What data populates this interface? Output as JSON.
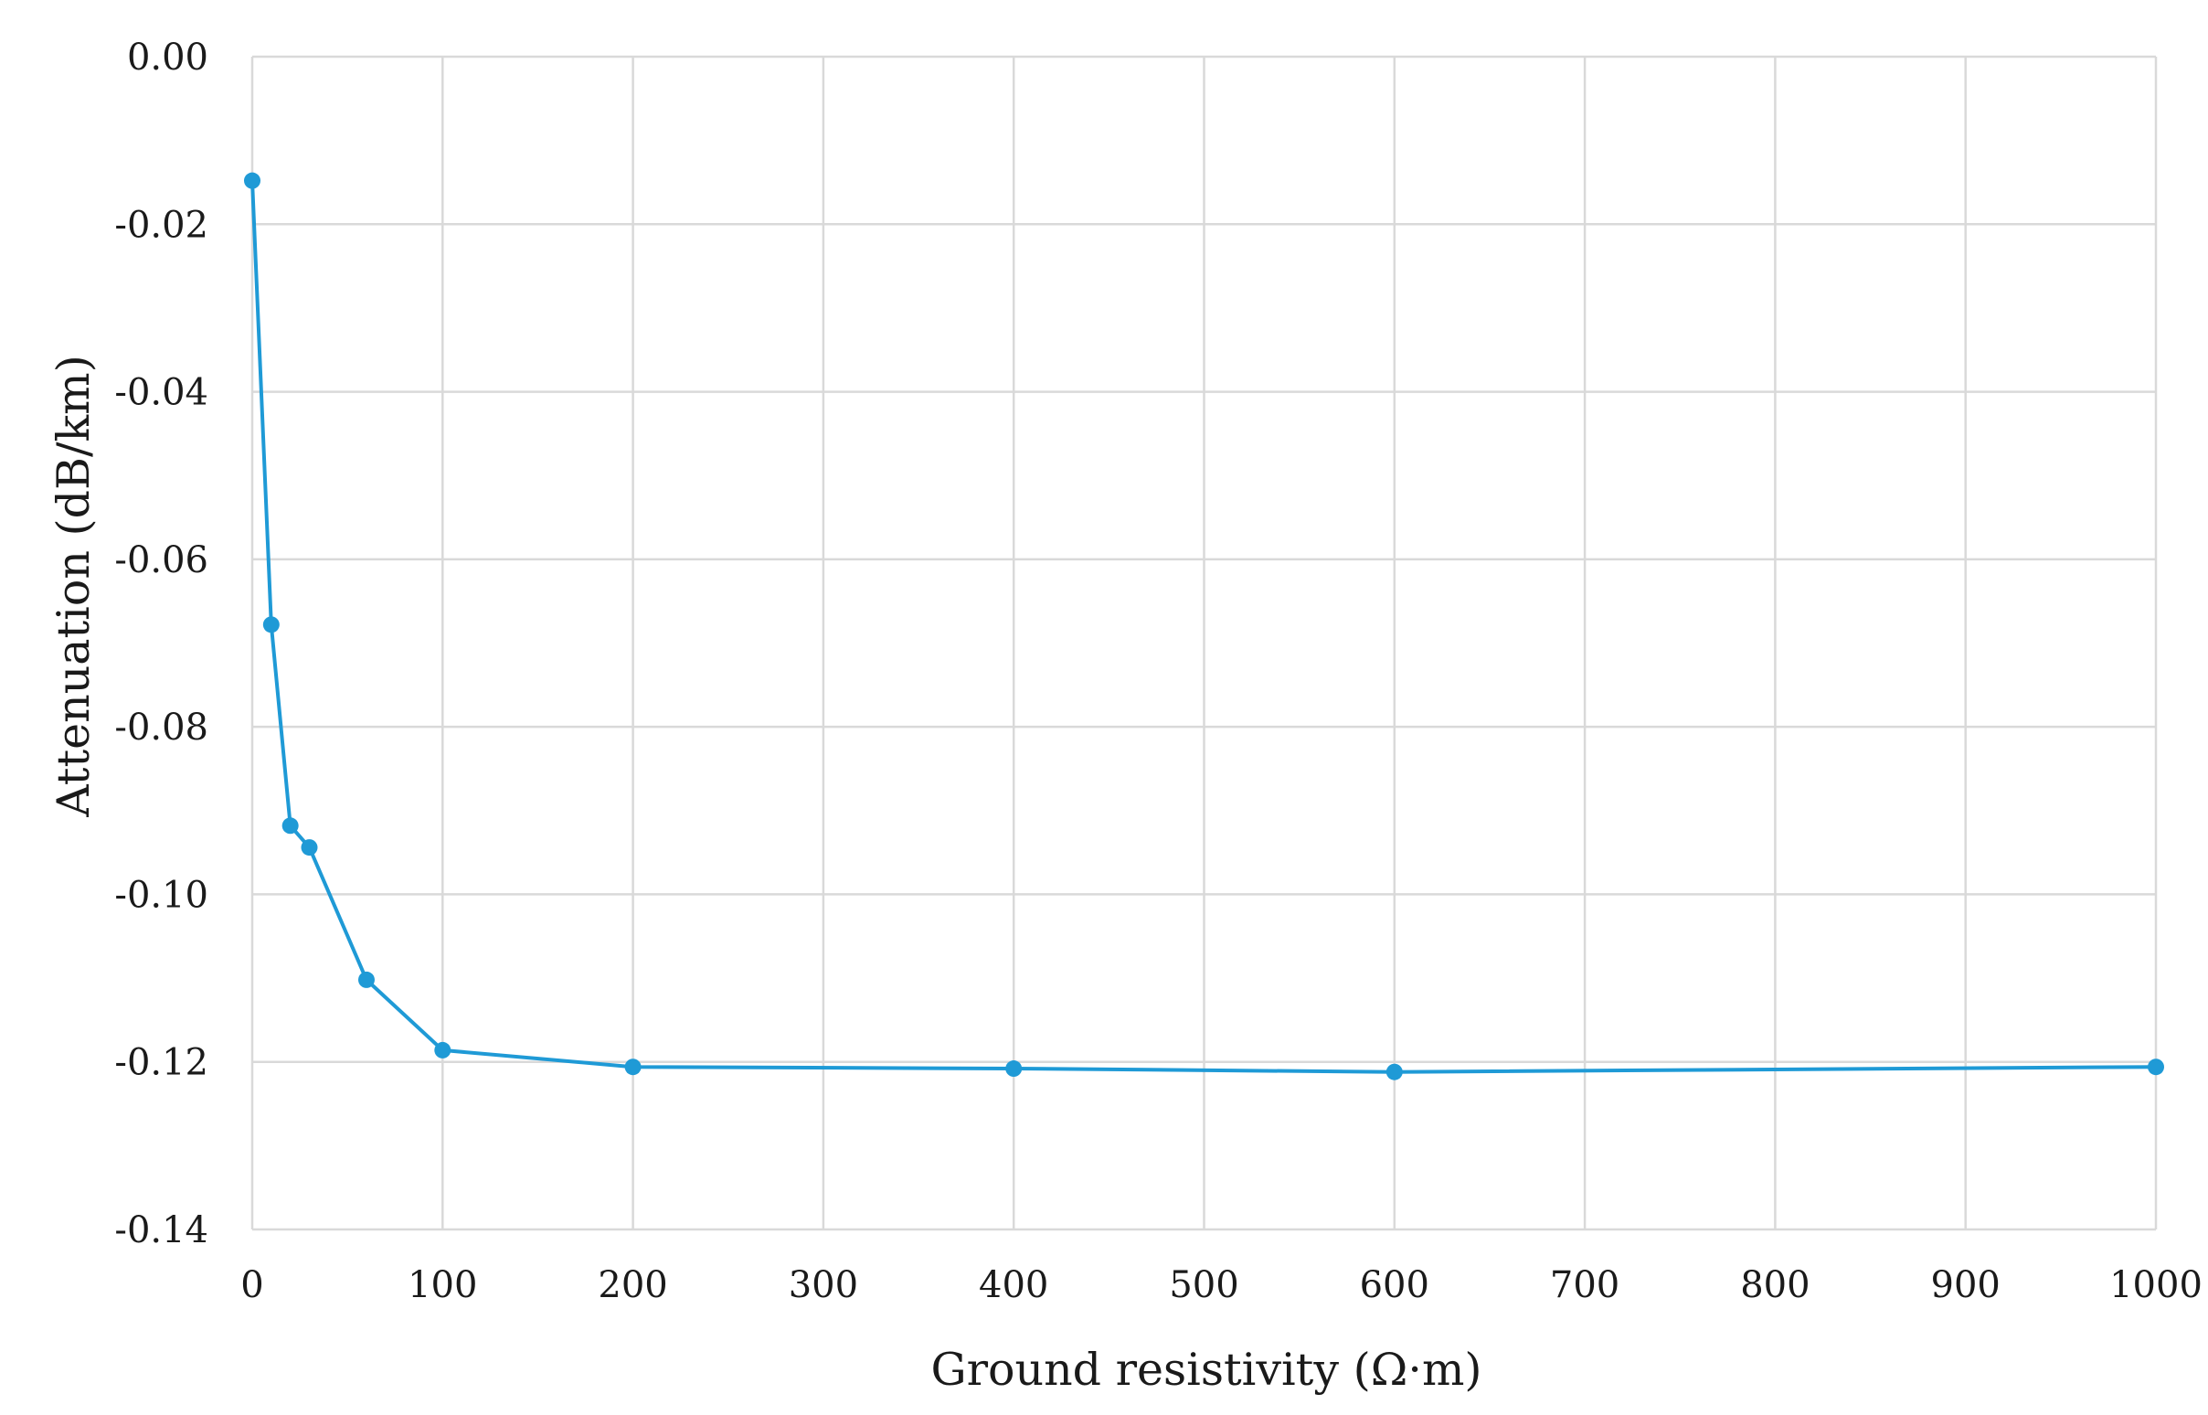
{
  "chart_data": {
    "type": "line",
    "title": "",
    "xlabel": "Ground resistivity (Ω·m)",
    "ylabel": "Attenuation (dB/km)",
    "xlim": [
      0,
      1000
    ],
    "ylim": [
      -0.14,
      0.0
    ],
    "x_ticks": [
      "0",
      "100",
      "200",
      "300",
      "400",
      "500",
      "600",
      "700",
      "800",
      "900",
      "1000"
    ],
    "y_ticks": [
      "0.00",
      "-0.02",
      "-0.04",
      "-0.06",
      "-0.08",
      "-0.10",
      "-0.12",
      "-0.14"
    ],
    "grid": true,
    "legend": "none",
    "series": [
      {
        "color": "#1f9ad6",
        "markers": true,
        "x": [
          0,
          10,
          20,
          30,
          60,
          100,
          200,
          400,
          600,
          1000
        ],
        "y": [
          -0.0148,
          -0.0678,
          -0.0918,
          -0.0944,
          -0.1102,
          -0.1186,
          -0.1206,
          -0.1208,
          -0.1212,
          -0.1206
        ]
      }
    ]
  }
}
